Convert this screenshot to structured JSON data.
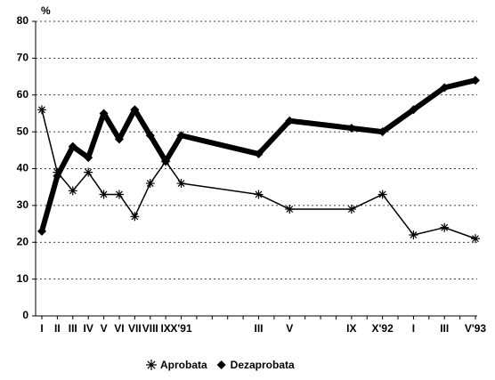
{
  "chart_data": {
    "type": "line",
    "y_label": "%",
    "categories": [
      "I",
      "II",
      "III",
      "IV",
      "V",
      "VI",
      "VII",
      "VIII",
      "IX",
      "X'91",
      null,
      null,
      null,
      null,
      "III",
      null,
      "V",
      null,
      null,
      null,
      "IX",
      null,
      "X'92",
      null,
      "I",
      null,
      "III",
      null,
      "V'93"
    ],
    "series": [
      {
        "name": "Aprobata",
        "color": "#000000",
        "marker": "asterisk",
        "values": [
          56,
          39,
          34,
          39,
          33,
          33,
          27,
          36,
          42,
          36,
          null,
          null,
          null,
          null,
          33,
          null,
          29,
          null,
          null,
          null,
          29,
          null,
          33,
          null,
          22,
          null,
          24,
          null,
          21
        ]
      },
      {
        "name": "Dezaprobata",
        "color": "#000000",
        "marker": "diamond",
        "values": [
          23,
          38,
          46,
          43,
          55,
          48,
          56,
          49,
          42,
          49,
          null,
          null,
          null,
          null,
          44,
          null,
          53,
          null,
          null,
          null,
          51,
          null,
          50,
          null,
          56,
          null,
          62,
          null,
          64
        ]
      }
    ],
    "ylim": [
      0,
      80
    ],
    "yticks": [
      0,
      10,
      20,
      30,
      40,
      50,
      60,
      70,
      80
    ],
    "grid": true,
    "legend": "bottom"
  }
}
